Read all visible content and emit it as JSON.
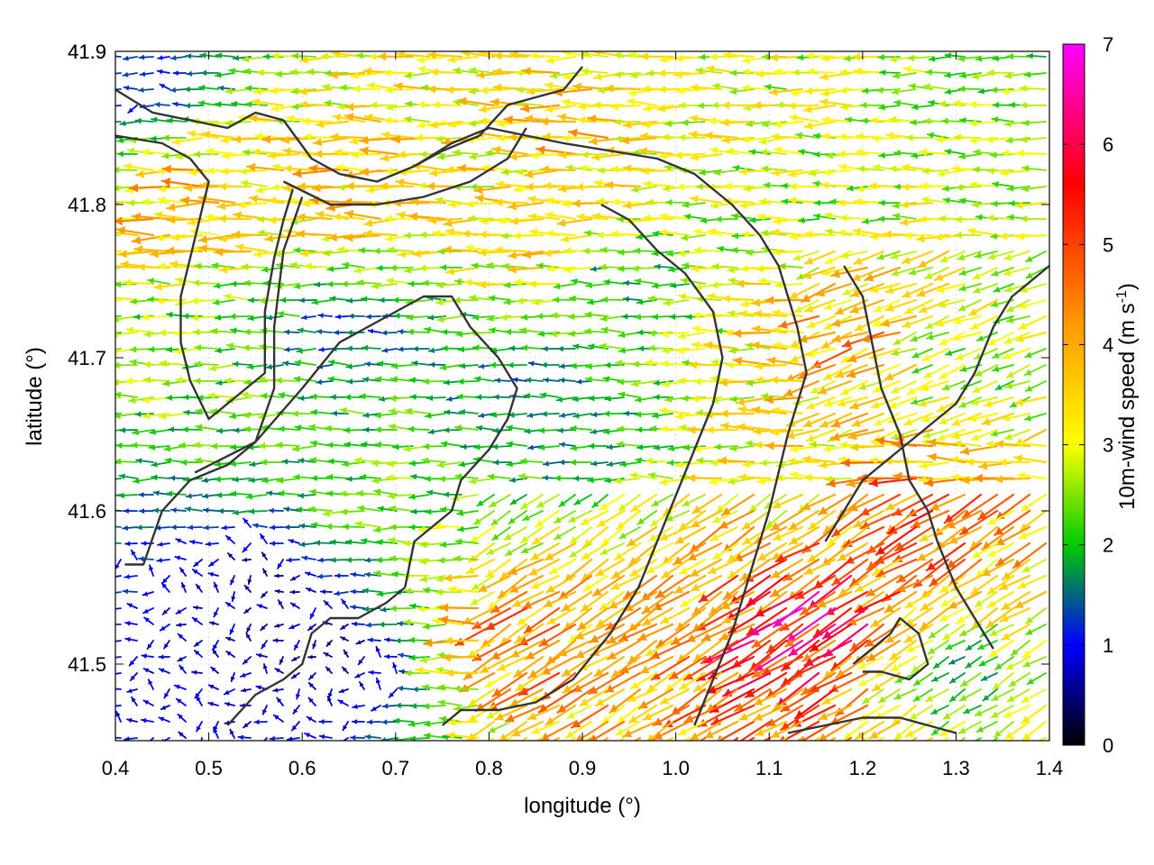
{
  "chart_data": {
    "type": "vector-field",
    "xlabel": "longitude (°)",
    "ylabel": "latitude (°)",
    "xlim": [
      0.4,
      1.4
    ],
    "ylim": [
      41.45,
      41.9
    ],
    "xticks": [
      "0.4",
      "0.5",
      "0.6",
      "0.7",
      "0.8",
      "0.9",
      "1.0",
      "1.1",
      "1.2",
      "1.3",
      "1.4"
    ],
    "yticks": [
      "41.5",
      "41.6",
      "41.7",
      "41.8",
      "41.9"
    ],
    "colorbar": {
      "label_main": "10m-wind speed (m s",
      "label_exp": "-1",
      "label_close": ")",
      "range": [
        0,
        7
      ],
      "ticks": [
        "0",
        "1",
        "2",
        "3",
        "4",
        "5",
        "6",
        "7"
      ],
      "colors": [
        "#000000",
        "#0000ff",
        "#00cc00",
        "#ffff00",
        "#ff9900",
        "#ff0000",
        "#ff00ff"
      ]
    },
    "grid": "dotted",
    "prevailing_direction": "easterly flow (vectors point west)",
    "speed_regions": [
      {
        "lon": 0.55,
        "lat": 41.55,
        "speed": 0.6
      },
      {
        "lon": 0.63,
        "lat": 41.5,
        "speed": 0.5
      },
      {
        "lon": 0.48,
        "lat": 41.48,
        "speed": 0.8
      },
      {
        "lon": 0.44,
        "lat": 41.88,
        "speed": 1.1
      },
      {
        "lon": 0.66,
        "lat": 41.72,
        "speed": 1.3
      },
      {
        "lon": 0.85,
        "lat": 41.68,
        "speed": 1.5
      },
      {
        "lon": 0.9,
        "lat": 41.65,
        "speed": 1.7
      },
      {
        "lon": 0.95,
        "lat": 41.75,
        "speed": 1.9
      },
      {
        "lon": 0.7,
        "lat": 41.62,
        "speed": 2.3
      },
      {
        "lon": 0.5,
        "lat": 41.7,
        "speed": 2.4
      },
      {
        "lon": 0.65,
        "lat": 41.82,
        "speed": 3.6
      },
      {
        "lon": 0.72,
        "lat": 41.8,
        "speed": 3.4
      },
      {
        "lon": 0.49,
        "lat": 41.8,
        "speed": 3.8
      },
      {
        "lon": 0.87,
        "lat": 41.78,
        "speed": 3.4
      },
      {
        "lon": 0.9,
        "lat": 41.84,
        "speed": 3.7
      },
      {
        "lon": 1.02,
        "lat": 41.87,
        "speed": 3.0
      },
      {
        "lon": 1.0,
        "lat": 41.53,
        "speed": 3.6
      },
      {
        "lon": 0.85,
        "lat": 41.52,
        "speed": 4.4
      },
      {
        "lon": 1.1,
        "lat": 41.52,
        "speed": 5.2
      },
      {
        "lon": 1.16,
        "lat": 41.53,
        "speed": 5.9
      },
      {
        "lon": 1.2,
        "lat": 41.72,
        "speed": 4.1
      },
      {
        "lon": 1.25,
        "lat": 41.6,
        "speed": 4.6
      },
      {
        "lon": 1.15,
        "lat": 41.62,
        "speed": 3.3
      },
      {
        "lon": 1.3,
        "lat": 41.5,
        "speed": 2.0
      },
      {
        "lon": 1.35,
        "lat": 41.87,
        "speed": 2.4
      },
      {
        "lon": 1.15,
        "lat": 41.8,
        "speed": 2.6
      },
      {
        "lon": 1.32,
        "lat": 41.7,
        "speed": 2.4
      }
    ],
    "boundary_lines": [
      [
        [
          0.4,
          41.875
        ],
        [
          0.44,
          41.86
        ],
        [
          0.48,
          41.855
        ],
        [
          0.52,
          41.85
        ],
        [
          0.55,
          41.86
        ],
        [
          0.58,
          41.855
        ],
        [
          0.61,
          41.83
        ],
        [
          0.64,
          41.82
        ],
        [
          0.68,
          41.815
        ],
        [
          0.72,
          41.825
        ],
        [
          0.76,
          41.84
        ],
        [
          0.8,
          41.85
        ],
        [
          0.84,
          41.845
        ]
      ],
      [
        [
          0.4,
          41.845
        ],
        [
          0.45,
          41.84
        ],
        [
          0.48,
          41.83
        ],
        [
          0.5,
          41.815
        ],
        [
          0.49,
          41.79
        ],
        [
          0.48,
          41.765
        ],
        [
          0.47,
          41.74
        ],
        [
          0.47,
          41.71
        ],
        [
          0.48,
          41.685
        ],
        [
          0.5,
          41.66
        ],
        [
          0.53,
          41.675
        ],
        [
          0.56,
          41.69
        ],
        [
          0.56,
          41.73
        ],
        [
          0.57,
          41.765
        ],
        [
          0.58,
          41.79
        ],
        [
          0.59,
          41.81
        ]
      ],
      [
        [
          0.58,
          41.815
        ],
        [
          0.63,
          41.8
        ],
        [
          0.68,
          41.8
        ],
        [
          0.73,
          41.805
        ],
        [
          0.78,
          41.815
        ],
        [
          0.82,
          41.83
        ],
        [
          0.84,
          41.85
        ]
      ],
      [
        [
          0.72,
          41.825
        ],
        [
          0.75,
          41.835
        ],
        [
          0.79,
          41.845
        ],
        [
          0.82,
          41.865
        ],
        [
          0.85,
          41.87
        ],
        [
          0.88,
          41.875
        ],
        [
          0.9,
          41.89
        ]
      ],
      [
        [
          0.6,
          41.805
        ],
        [
          0.58,
          41.77
        ],
        [
          0.57,
          41.72
        ],
        [
          0.57,
          41.68
        ],
        [
          0.55,
          41.645
        ],
        [
          0.52,
          41.63
        ],
        [
          0.48,
          41.62
        ],
        [
          0.45,
          41.6
        ],
        [
          0.43,
          41.565
        ],
        [
          0.41,
          41.565
        ]
      ],
      [
        [
          0.485,
          41.625
        ],
        [
          0.55,
          41.645
        ],
        [
          0.6,
          41.68
        ],
        [
          0.64,
          41.71
        ],
        [
          0.67,
          41.72
        ],
        [
          0.7,
          41.73
        ],
        [
          0.73,
          41.74
        ],
        [
          0.76,
          41.74
        ],
        [
          0.78,
          41.72
        ],
        [
          0.81,
          41.7
        ],
        [
          0.83,
          41.68
        ],
        [
          0.82,
          41.66
        ],
        [
          0.8,
          41.64
        ],
        [
          0.77,
          41.62
        ],
        [
          0.76,
          41.6
        ],
        [
          0.74,
          41.59
        ],
        [
          0.72,
          41.58
        ],
        [
          0.71,
          41.55
        ]
      ],
      [
        [
          0.71,
          41.55
        ],
        [
          0.69,
          41.54
        ],
        [
          0.66,
          41.53
        ],
        [
          0.63,
          41.53
        ],
        [
          0.61,
          41.52
        ],
        [
          0.6,
          41.5
        ],
        [
          0.58,
          41.49
        ],
        [
          0.55,
          41.48
        ],
        [
          0.52,
          41.46
        ]
      ],
      [
        [
          0.84,
          41.845
        ],
        [
          0.88,
          41.84
        ],
        [
          0.93,
          41.835
        ],
        [
          0.98,
          41.83
        ],
        [
          1.02,
          41.82
        ],
        [
          1.06,
          41.8
        ],
        [
          1.09,
          41.78
        ],
        [
          1.11,
          41.76
        ],
        [
          1.13,
          41.72
        ],
        [
          1.14,
          41.69
        ],
        [
          1.12,
          41.65
        ],
        [
          1.1,
          41.6
        ],
        [
          1.08,
          41.56
        ],
        [
          1.06,
          41.52
        ],
        [
          1.04,
          41.49
        ],
        [
          1.02,
          41.46
        ]
      ],
      [
        [
          0.92,
          41.8
        ],
        [
          0.95,
          41.79
        ],
        [
          0.98,
          41.77
        ],
        [
          1.01,
          41.755
        ],
        [
          1.04,
          41.73
        ],
        [
          1.05,
          41.7
        ],
        [
          1.04,
          41.67
        ],
        [
          1.02,
          41.64
        ],
        [
          1.0,
          41.61
        ],
        [
          0.98,
          41.58
        ],
        [
          0.96,
          41.55
        ],
        [
          0.93,
          41.52
        ],
        [
          0.89,
          41.49
        ],
        [
          0.85,
          41.475
        ],
        [
          0.81,
          41.47
        ],
        [
          0.77,
          41.47
        ],
        [
          0.75,
          41.46
        ]
      ],
      [
        [
          1.18,
          41.76
        ],
        [
          1.2,
          41.74
        ],
        [
          1.21,
          41.71
        ],
        [
          1.22,
          41.68
        ],
        [
          1.24,
          41.65
        ],
        [
          1.25,
          41.62
        ],
        [
          1.27,
          41.6
        ],
        [
          1.28,
          41.58
        ],
        [
          1.3,
          41.55
        ],
        [
          1.32,
          41.53
        ],
        [
          1.34,
          41.51
        ]
      ],
      [
        [
          1.16,
          41.58
        ],
        [
          1.18,
          41.6
        ],
        [
          1.2,
          41.62
        ],
        [
          1.22,
          41.63
        ],
        [
          1.24,
          41.64
        ],
        [
          1.26,
          41.65
        ],
        [
          1.28,
          41.66
        ],
        [
          1.3,
          41.67
        ],
        [
          1.32,
          41.69
        ],
        [
          1.34,
          41.72
        ],
        [
          1.36,
          41.74
        ],
        [
          1.38,
          41.75
        ],
        [
          1.4,
          41.76
        ]
      ],
      [
        [
          1.19,
          41.5
        ],
        [
          1.21,
          41.51
        ],
        [
          1.23,
          41.52
        ],
        [
          1.24,
          41.53
        ],
        [
          1.26,
          41.52
        ],
        [
          1.27,
          41.5
        ],
        [
          1.25,
          41.49
        ],
        [
          1.22,
          41.495
        ],
        [
          1.2,
          41.495
        ]
      ],
      [
        [
          1.12,
          41.455
        ],
        [
          1.16,
          41.46
        ],
        [
          1.2,
          41.465
        ],
        [
          1.24,
          41.465
        ],
        [
          1.27,
          41.46
        ],
        [
          1.3,
          41.455
        ]
      ]
    ]
  }
}
